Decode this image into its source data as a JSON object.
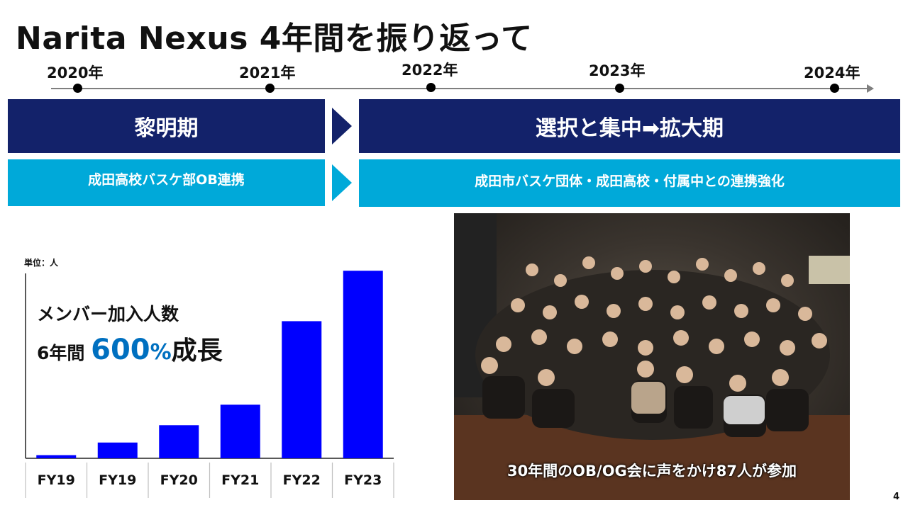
{
  "title": "Narita Nexus 4年間を振り返って",
  "timeline": {
    "years": [
      "2020年",
      "2021年",
      "2022年",
      "2023年",
      "2024年"
    ]
  },
  "phases": {
    "phase1_title": "黎明期",
    "phase1_desc": "成田高校バスケ部OB連携",
    "phase2_title": "選択と集中➡拡大期",
    "phase2_desc": "成田市バスケ団体・成田高校・付属中との連携強化"
  },
  "highlight": {
    "line1": "メンバー加入人数",
    "line2_prefix": "6年間 ",
    "big_number": "600",
    "percent": "%",
    "suffix": "成長"
  },
  "colors": {
    "navy": "#13226a",
    "cyan": "#00a9d9",
    "bar": "#0000ff",
    "accent": "#0070c0"
  },
  "chart_data": {
    "type": "bar",
    "unit_label": "単位：人",
    "categories": [
      "FY19",
      "FY19",
      "FY20",
      "FY21",
      "FY22",
      "FY23"
    ],
    "values": [
      2,
      10,
      21,
      34,
      87,
      119
    ],
    "ylim": [
      0,
      120
    ],
    "grid": false,
    "legend": "none"
  },
  "photo": {
    "caption": "30年間のOB/OG会に声をかけ87人が参加"
  },
  "page_number": "4"
}
